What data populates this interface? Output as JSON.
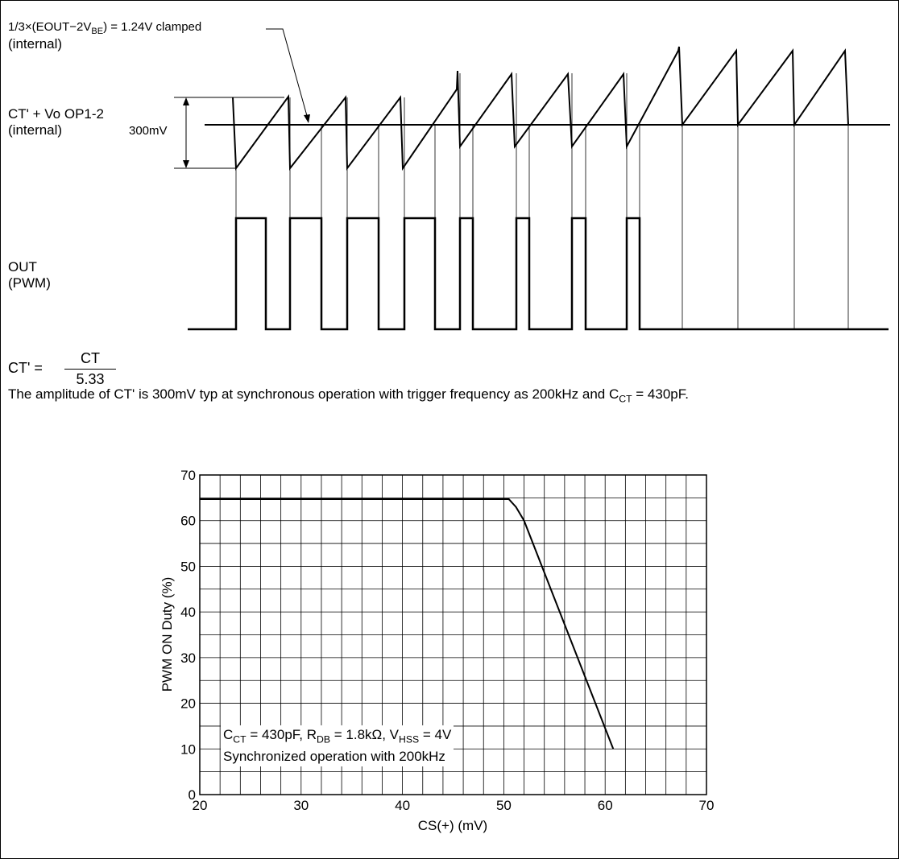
{
  "top_diagram": {
    "clamp_label": "1/3×(EOUT−2V",
    "clamp_label_sub": "BE",
    "clamp_label_tail": ") = 1.24V clamped",
    "clamp_label_line2": "(internal)",
    "ct_label_line1": "CT' + Vo OP1-2",
    "ct_label_line2": "(internal)",
    "amplitude_label": "300mV",
    "out_label_line1": "OUT",
    "out_label_line2": "(PWM)"
  },
  "formula": {
    "lhs": "CT' =",
    "numerator": "CT",
    "denominator": "5.33"
  },
  "note": {
    "text_main": "The amplitude of CT' is 300mV typ at synchronous operation with trigger frequency as 200kHz and C",
    "text_sub": "CT",
    "text_tail": " = 430pF."
  },
  "chart_data": {
    "type": "line",
    "xlabel": "CS(+)  (mV)",
    "ylabel": "PWM ON Duty  (%)",
    "xlim": [
      20,
      70
    ],
    "ylim": [
      0,
      70
    ],
    "x_ticks": [
      20,
      30,
      40,
      50,
      60,
      70
    ],
    "y_ticks": [
      0,
      10,
      20,
      30,
      40,
      50,
      60,
      70
    ],
    "grid": true,
    "series": [
      {
        "x": [
          20,
          50.5,
          51.2,
          52,
          60.8
        ],
        "y": [
          64.7,
          64.7,
          63,
          60,
          10
        ]
      }
    ],
    "annotation": {
      "line1_parts": [
        "C",
        "CT",
        " = 430pF, R",
        "DB",
        " = 1.8kΩ, V",
        "HSS",
        " = 4V"
      ],
      "line2": "Synchronized operation with 200kHz"
    }
  }
}
